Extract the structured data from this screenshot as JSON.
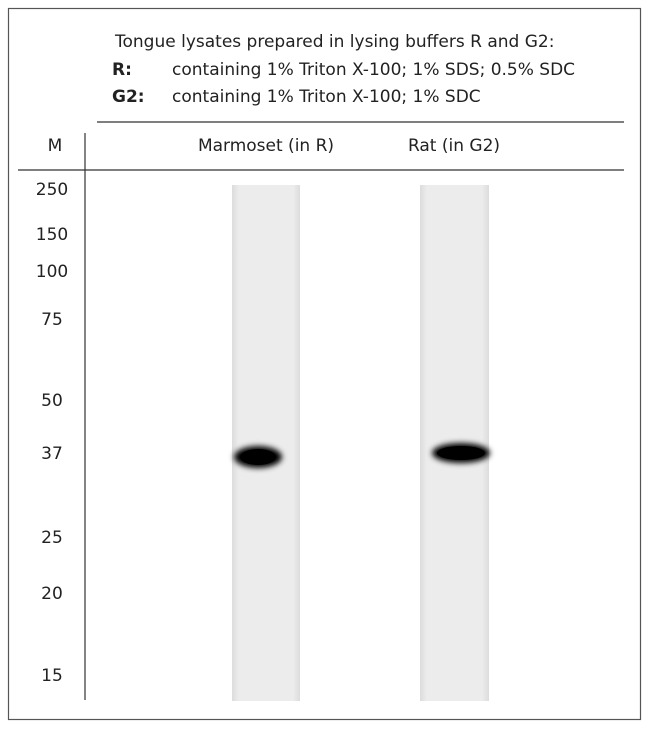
{
  "header": {
    "title": "Tongue lysates prepared in lysing buffers R and G2:",
    "buffers": [
      {
        "label": "R:",
        "description": "containing 1% Triton X-100; 1% SDS; 0.5% SDC"
      },
      {
        "label": "G2:",
        "description": "containing 1% Triton X-100; 1% SDC"
      }
    ]
  },
  "columns": {
    "marker": "M",
    "lanes": [
      "Marmoset (in R)",
      "Rat (in G2)"
    ]
  },
  "markers": [
    "250",
    "150",
    "100",
    "75",
    "50",
    "37",
    "25",
    "20",
    "15"
  ]
}
